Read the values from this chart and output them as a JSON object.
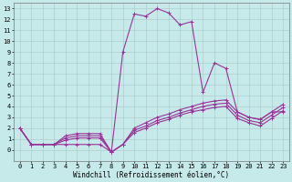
{
  "title": "",
  "xlabel": "Windchill (Refroidissement éolien,°C)",
  "ylabel": "",
  "xlim": [
    -0.5,
    23.5
  ],
  "ylim": [
    -1.0,
    13.5
  ],
  "xticks": [
    0,
    1,
    2,
    3,
    4,
    5,
    6,
    7,
    8,
    9,
    10,
    11,
    12,
    13,
    14,
    15,
    16,
    17,
    18,
    19,
    20,
    21,
    22,
    23
  ],
  "yticks": [
    0,
    1,
    2,
    3,
    4,
    5,
    6,
    7,
    8,
    9,
    10,
    11,
    12,
    13
  ],
  "background_color": "#c6eaea",
  "line_color": "#993399",
  "grid_color": "#b0cccc",
  "lines": [
    {
      "x": [
        0,
        1,
        2,
        3,
        4,
        5,
        6,
        7,
        8,
        9,
        10,
        11,
        12,
        13,
        14,
        15,
        16,
        17,
        18,
        19,
        20,
        21,
        22,
        23
      ],
      "y": [
        2.0,
        0.5,
        0.5,
        0.5,
        0.5,
        0.5,
        0.5,
        0.5,
        -0.2,
        9.0,
        12.5,
        12.3,
        13.0,
        12.6,
        11.5,
        11.8,
        5.3,
        8.0,
        7.5,
        3.5,
        3.0,
        2.8,
        3.5,
        3.5
      ]
    },
    {
      "x": [
        0,
        1,
        2,
        3,
        4,
        5,
        6,
        7,
        8,
        9,
        10,
        11,
        12,
        13,
        14,
        15,
        16,
        17,
        18,
        19,
        20,
        21,
        22,
        23
      ],
      "y": [
        2.0,
        0.5,
        0.5,
        0.5,
        1.3,
        1.5,
        1.5,
        1.5,
        -0.2,
        0.5,
        2.0,
        2.5,
        3.0,
        3.3,
        3.7,
        4.0,
        4.3,
        4.5,
        4.6,
        3.5,
        3.0,
        2.8,
        3.5,
        4.2
      ]
    },
    {
      "x": [
        0,
        1,
        2,
        3,
        4,
        5,
        6,
        7,
        8,
        9,
        10,
        11,
        12,
        13,
        14,
        15,
        16,
        17,
        18,
        19,
        20,
        21,
        22,
        23
      ],
      "y": [
        2.0,
        0.5,
        0.5,
        0.5,
        1.1,
        1.3,
        1.3,
        1.3,
        -0.2,
        0.5,
        1.8,
        2.2,
        2.7,
        3.0,
        3.4,
        3.7,
        4.0,
        4.2,
        4.3,
        3.2,
        2.7,
        2.5,
        3.2,
        3.9
      ]
    },
    {
      "x": [
        0,
        1,
        2,
        3,
        4,
        5,
        6,
        7,
        8,
        9,
        10,
        11,
        12,
        13,
        14,
        15,
        16,
        17,
        18,
        19,
        20,
        21,
        22,
        23
      ],
      "y": [
        2.0,
        0.5,
        0.5,
        0.5,
        0.9,
        1.1,
        1.1,
        1.1,
        -0.2,
        0.5,
        1.6,
        2.0,
        2.5,
        2.8,
        3.2,
        3.5,
        3.7,
        3.9,
        4.0,
        2.9,
        2.5,
        2.2,
        2.9,
        3.6
      ]
    }
  ],
  "marker": "+",
  "markersize": 3,
  "linewidth": 0.8,
  "tick_fontsize": 5,
  "label_fontsize": 5.5,
  "figwidth": 3.2,
  "figheight": 2.0,
  "dpi": 100
}
